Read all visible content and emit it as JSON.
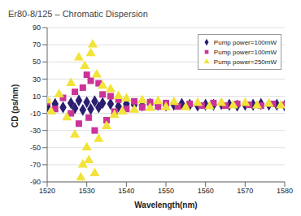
{
  "chart_data": {
    "type": "scatter",
    "title": "Er80-8/125 – Chromatic Dispersion",
    "x_label": "Wavelength(nm)",
    "y_label": "CD (ps/nm)",
    "xlim": [
      1520,
      1580
    ],
    "xticks": [
      1520,
      1530,
      1540,
      1550,
      1560,
      1570,
      1580
    ],
    "ylim": [
      -90,
      90
    ],
    "yticks": [
      -90,
      -70,
      -50,
      -30,
      -10,
      10,
      30,
      50,
      70,
      90
    ],
    "grid": true,
    "legend": "upper right",
    "series": [
      {
        "name": "Pump power=100mW",
        "color": "#2a1f6e",
        "marker": "diamond",
        "x": [
          1520,
          1522,
          1524,
          1526,
          1527,
          1528,
          1529,
          1530,
          1531,
          1532,
          1533,
          1534,
          1536,
          1538,
          1540,
          1542,
          1544,
          1546,
          1548,
          1550,
          1552,
          1554,
          1556,
          1558,
          1560,
          1562,
          1564,
          1566,
          1568,
          1570,
          1572,
          1574,
          1576,
          1578,
          1580
        ],
        "values": [
          -2,
          1,
          -3,
          2,
          -4,
          5,
          -6,
          3,
          -5,
          4,
          -3,
          2,
          1,
          -2,
          1,
          0,
          -1,
          1,
          0,
          -1,
          0,
          1,
          0,
          -1,
          0,
          0,
          1,
          0,
          -1,
          0,
          0,
          1,
          0,
          0,
          -1
        ]
      },
      {
        "name": "Pump power=100mW",
        "color": "#cc3399",
        "marker": "square",
        "x": [
          1520,
          1522,
          1524,
          1526,
          1527,
          1528,
          1529,
          1530,
          1530.5,
          1531,
          1532,
          1533,
          1534,
          1535,
          1536,
          1537,
          1538,
          1540,
          1542,
          1544,
          1546,
          1548,
          1550,
          1553,
          1556,
          1559,
          1562,
          1565,
          1568,
          1571,
          1574,
          1577,
          1580
        ],
        "values": [
          3,
          -5,
          8,
          -10,
          15,
          -22,
          20,
          35,
          -15,
          28,
          -30,
          25,
          12,
          -18,
          10,
          -8,
          6,
          -5,
          4,
          -3,
          3,
          -2,
          2,
          -2,
          1,
          -1,
          2,
          -1,
          1,
          0,
          -1,
          1,
          0
        ]
      },
      {
        "name": "Pump power=250mW",
        "color": "#f2e33a",
        "marker": "triangle",
        "x": [
          1520,
          1521,
          1523,
          1525,
          1526,
          1527,
          1528,
          1528.5,
          1529,
          1529.5,
          1530,
          1530.5,
          1531,
          1531.5,
          1532,
          1532.5,
          1533,
          1534,
          1535,
          1536,
          1537,
          1538,
          1539,
          1540,
          1542,
          1544,
          1546,
          1548,
          1550,
          1552,
          1555,
          1558,
          1561,
          1564,
          1567,
          1570,
          1573,
          1576,
          1579
        ],
        "values": [
          5,
          -8,
          12,
          -15,
          25,
          -35,
          55,
          -85,
          -70,
          45,
          -50,
          -65,
          60,
          70,
          -80,
          35,
          -40,
          22,
          -25,
          18,
          -12,
          10,
          -8,
          7,
          -6,
          5,
          -4,
          4,
          -3,
          3,
          -3,
          2,
          -2,
          2,
          -1,
          2,
          -1,
          1,
          -1
        ]
      }
    ]
  }
}
